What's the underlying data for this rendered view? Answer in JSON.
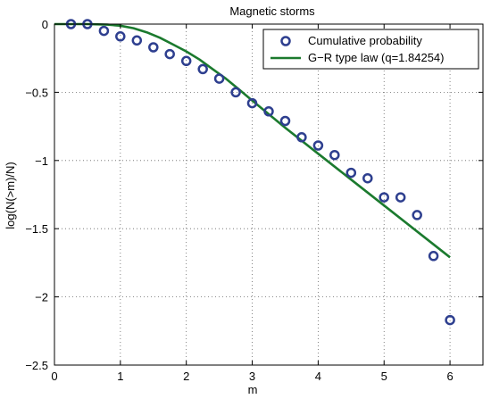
{
  "chart_data": {
    "type": "scatter",
    "title": "Magnetic storms",
    "xlabel": "m",
    "ylabel": "log(N(>m)/N)",
    "xlim": [
      0,
      6.5
    ],
    "ylim": [
      -2.5,
      0
    ],
    "xticks": [
      0,
      1,
      2,
      3,
      4,
      5,
      6
    ],
    "yticks": [
      0,
      -0.5,
      -1,
      -1.5,
      -2,
      -2.5
    ],
    "xtick_labels": [
      "0",
      "1",
      "2",
      "3",
      "4",
      "5",
      "6"
    ],
    "ytick_labels": [
      "0",
      "−0.5",
      "−1",
      "−1.5",
      "−2",
      "−2.5"
    ],
    "grid": true,
    "legend_position": "top-right",
    "series": [
      {
        "name": "Cumulative probability",
        "kind": "markers",
        "color": "#2e3f8f",
        "x": [
          0.25,
          0.5,
          0.75,
          1.0,
          1.25,
          1.5,
          1.75,
          2.0,
          2.25,
          2.5,
          2.75,
          3.0,
          3.25,
          3.5,
          3.75,
          4.0,
          4.25,
          4.5,
          4.75,
          5.0,
          5.25,
          5.5,
          5.75,
          6.0
        ],
        "y": [
          0,
          0,
          -0.05,
          -0.09,
          -0.12,
          -0.17,
          -0.22,
          -0.27,
          -0.33,
          -0.4,
          -0.5,
          -0.58,
          -0.64,
          -0.71,
          -0.83,
          -0.89,
          -0.96,
          -1.09,
          -1.13,
          -1.27,
          -1.27,
          -1.4,
          -1.7,
          -2.17
        ]
      },
      {
        "name": "G−R type law (q=1.84254)",
        "kind": "line",
        "color": "#1b7a2e",
        "x": [
          0,
          0.5,
          0.8,
          1.0,
          1.2,
          1.4,
          1.6,
          1.8,
          2.0,
          2.2,
          2.4,
          2.6,
          2.8,
          3.0,
          3.5,
          4.0,
          4.5,
          5.0,
          5.5,
          6.0
        ],
        "y": [
          0,
          0,
          -0.004,
          -0.012,
          -0.03,
          -0.06,
          -0.1,
          -0.15,
          -0.2,
          -0.26,
          -0.33,
          -0.4,
          -0.48,
          -0.56,
          -0.76,
          -0.95,
          -1.14,
          -1.33,
          -1.52,
          -1.71
        ]
      }
    ]
  }
}
